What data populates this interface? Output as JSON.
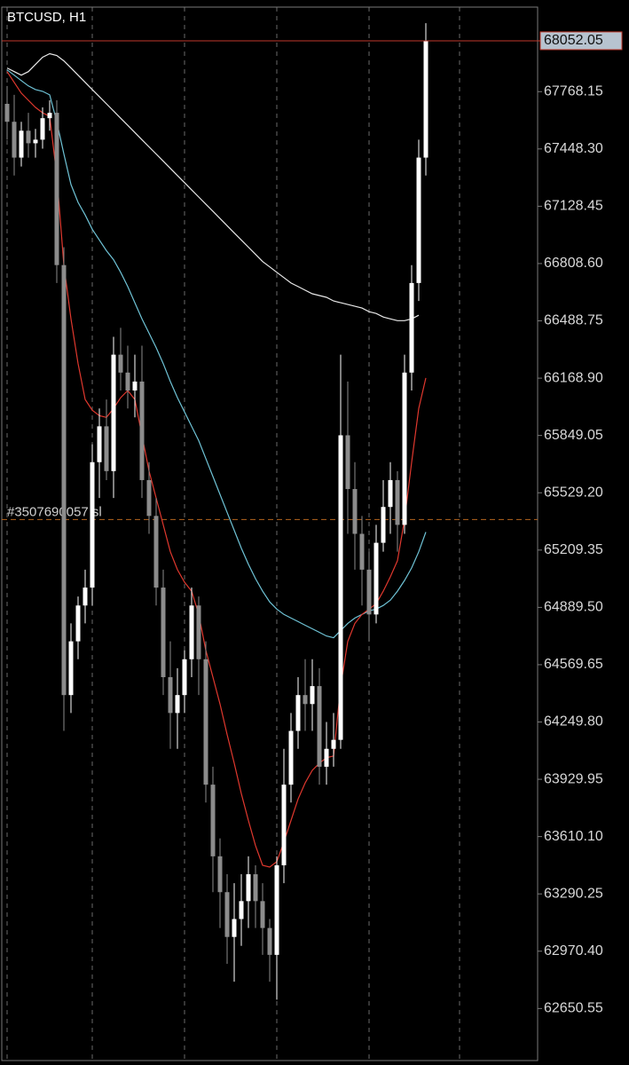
{
  "chart_data": {
    "type": "candlestick",
    "title": "BTCUSD, H1",
    "up_color": "#ffffff",
    "down_color": "#8c8c8c",
    "ylim": [
      62360,
      68240
    ],
    "yticks": [
      62650.55,
      {
        "value": 62970.4,
        "label": "62970.40"
      },
      63290.25,
      {
        "value": 63610.1,
        "label": "63610.10"
      },
      63929.95,
      {
        "value": 64249.8,
        "label": "64249.80"
      },
      64569.65,
      {
        "value": 64889.5,
        "label": "64889.50"
      },
      65209.35,
      {
        "value": 65529.2,
        "label": "65529.20"
      },
      65849.05,
      {
        "value": 66168.9,
        "label": "66168.90"
      },
      66488.75,
      {
        "value": 66808.6,
        "label": "66808.60"
      },
      67128.45,
      {
        "value": 67448.3,
        "label": "67448.30"
      },
      67768.15
    ],
    "last_price": 68052.05,
    "last_price_color": "#c0392b",
    "order_line": {
      "label": "#3507690057 sl",
      "value": 65380,
      "color": "#b5651d"
    },
    "open": [
      67700,
      67600,
      67400,
      67550,
      67480,
      67500,
      67620,
      67650,
      66800,
      64400,
      64700,
      64900,
      65000,
      65700,
      65900,
      65650,
      66300,
      66200,
      66100,
      66150,
      65600,
      65400,
      65000,
      64500,
      64300,
      64400,
      64600,
      64900,
      64600,
      63900,
      63500,
      63300,
      63050,
      63150,
      63250,
      63400,
      63250,
      63100,
      62950,
      63450,
      63900,
      64200,
      64400,
      64350,
      64450,
      64000,
      64100,
      64150,
      65850,
      65550,
      65300,
      65100,
      64850,
      65250,
      65450,
      65600,
      65350,
      66200,
      66700,
      67400
    ],
    "high": [
      67800,
      67750,
      67600,
      67650,
      67560,
      67680,
      67720,
      67720,
      66900,
      64800,
      64950,
      65100,
      65800,
      66000,
      66050,
      66400,
      66450,
      66350,
      66300,
      66350,
      65700,
      65500,
      65100,
      64700,
      64550,
      64650,
      65000,
      64950,
      64700,
      64000,
      63600,
      63400,
      63350,
      63400,
      63500,
      63450,
      63350,
      63150,
      63500,
      64100,
      64300,
      64500,
      64600,
      64600,
      64550,
      64250,
      64300,
      66300,
      66150,
      65700,
      65400,
      65200,
      65350,
      65600,
      65700,
      65650,
      66300,
      66800,
      67500,
      68150
    ],
    "low": [
      67500,
      67300,
      67350,
      67400,
      67400,
      67450,
      67550,
      66700,
      64200,
      64300,
      64600,
      64800,
      64900,
      65500,
      65600,
      65500,
      66100,
      66000,
      65950,
      65500,
      65300,
      64900,
      64400,
      64100,
      64100,
      64300,
      64500,
      64400,
      63800,
      63300,
      63100,
      62900,
      62800,
      63000,
      63100,
      63100,
      62950,
      62800,
      62700,
      63350,
      63800,
      64100,
      64200,
      64200,
      63900,
      63900,
      64000,
      64100,
      65300,
      65100,
      64900,
      64700,
      64800,
      65200,
      65300,
      65200,
      65300,
      66100,
      66600,
      67300
    ],
    "close": [
      67600,
      67400,
      67550,
      67480,
      67500,
      67620,
      67650,
      66800,
      64400,
      64700,
      64900,
      65000,
      65700,
      65900,
      65650,
      66300,
      66200,
      66100,
      66150,
      65600,
      65400,
      65000,
      64500,
      64300,
      64400,
      64600,
      64900,
      64600,
      63900,
      63500,
      63300,
      63050,
      63150,
      63250,
      63400,
      63250,
      63100,
      62950,
      63450,
      63900,
      64200,
      64400,
      64350,
      64450,
      64000,
      64100,
      64150,
      65850,
      65550,
      65300,
      65100,
      64850,
      65250,
      65450,
      65600,
      65350,
      66200,
      66700,
      67400,
      68052.05
    ],
    "lines": [
      {
        "color": "#e8e8e8",
        "values": [
          67900,
          67880,
          67860,
          67880,
          67920,
          67960,
          67980,
          67970,
          67940,
          67900,
          67860,
          67820,
          67780,
          67740,
          67700,
          67660,
          67620,
          67580,
          67540,
          67500,
          67460,
          67420,
          67380,
          67340,
          67300,
          67260,
          67220,
          67180,
          67140,
          67100,
          67060,
          67020,
          66980,
          66940,
          66900,
          66860,
          66820,
          66790,
          66760,
          66730,
          66700,
          66680,
          66660,
          66640,
          66630,
          66620,
          66600,
          66590,
          66580,
          66570,
          66560,
          66540,
          66530,
          66510,
          66500,
          66490,
          66490,
          66500,
          66520,
          null
        ]
      },
      {
        "color": "#6fc3d6",
        "values": [
          67890,
          67860,
          67830,
          67800,
          67780,
          67770,
          67750,
          67600,
          67420,
          67250,
          67150,
          67080,
          67000,
          66940,
          66880,
          66830,
          66760,
          66680,
          66590,
          66500,
          66420,
          66340,
          66250,
          66150,
          66060,
          65980,
          65900,
          65820,
          65720,
          65620,
          65520,
          65420,
          65320,
          65220,
          65130,
          65050,
          64980,
          64920,
          64880,
          64850,
          64830,
          64810,
          64790,
          64770,
          64750,
          64730,
          64720,
          64760,
          64800,
          64830,
          64850,
          64870,
          64880,
          64900,
          64930,
          64980,
          65040,
          65110,
          65200,
          65310
        ]
      },
      {
        "color": "#e0382e",
        "values": [
          67880,
          67820,
          67760,
          67720,
          67680,
          67650,
          67630,
          67300,
          66800,
          66500,
          66250,
          66050,
          65990,
          65960,
          65950,
          66000,
          66060,
          66100,
          66050,
          65850,
          65650,
          65500,
          65350,
          65200,
          65100,
          65030,
          64980,
          64850,
          64650,
          64500,
          64350,
          64180,
          64020,
          63850,
          63700,
          63560,
          63450,
          63440,
          63470,
          63580,
          63700,
          63820,
          63910,
          63980,
          64020,
          64050,
          64060,
          64450,
          64700,
          64800,
          64850,
          64880,
          64910,
          64980,
          65060,
          65150,
          65380,
          65700,
          66000,
          66170
        ]
      }
    ]
  }
}
